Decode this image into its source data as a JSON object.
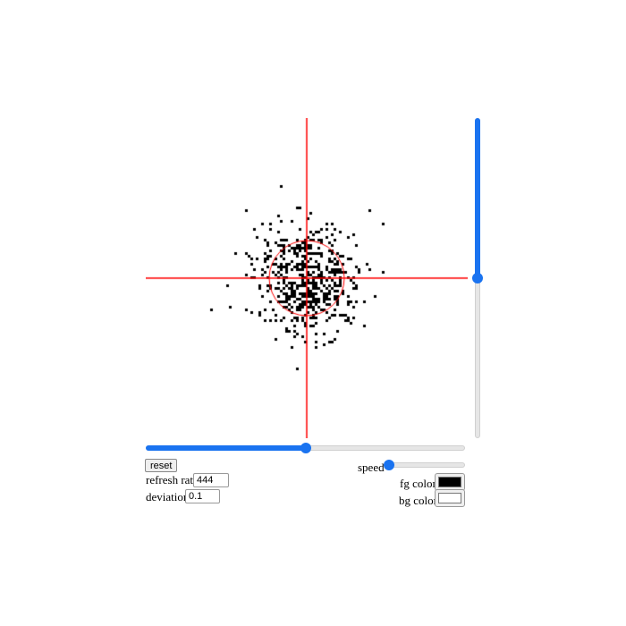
{
  "controls": {
    "reset_label": "reset",
    "refresh_rate_label": "refresh rate",
    "refresh_rate_value": "444",
    "deviation_label": "deviation",
    "deviation_value": "0.1",
    "speed_label": "speed",
    "speed_value": 0,
    "fg_color_label": "fg color",
    "bg_color_label": "bg color",
    "fg_color": "#000000",
    "bg_color": "#ffffff",
    "x_slider_value": 0.5,
    "y_slider_value": 0.5
  },
  "colors": {
    "accent": "#1a73f0",
    "crosshair": "#ff0000"
  }
}
